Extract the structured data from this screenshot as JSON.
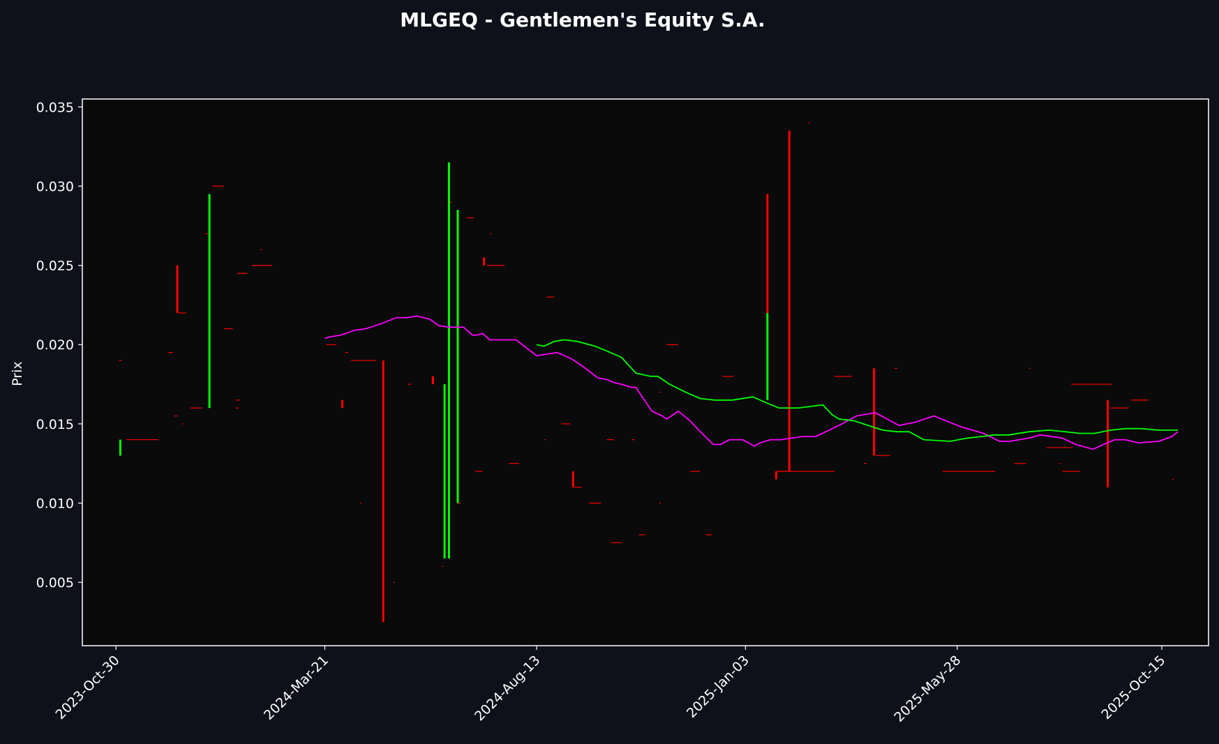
{
  "chart_data": {
    "type": "candlestick",
    "title": "MLGEQ - Gentlemen's Equity S.A.",
    "ylabel": "Prix",
    "xlabel": "",
    "x_ticks": [
      "2023-Oct-30",
      "2024-Mar-21",
      "2024-Aug-13",
      "2025-Jan-03",
      "2025-May-28",
      "2025-Oct-15"
    ],
    "y_ticks": [
      "0.005",
      "0.010",
      "0.015",
      "0.020",
      "0.025",
      "0.030",
      "0.035"
    ],
    "ylim": [
      0.001,
      0.0355
    ],
    "xlim": [
      "2023-Oct-07",
      "2025-Nov-16"
    ],
    "grid": false,
    "colors": {
      "background": "#0e111a",
      "plot_area": "#0a0a0a",
      "axes": "#ffffff",
      "up": "#00ff00",
      "down": "#ff0000",
      "ma_short": "#ff00ff",
      "ma_long": "#00ff00"
    },
    "candles": [
      {
        "date": "2023-Nov-02",
        "open": 0.013,
        "high": 0.014,
        "low": 0.013,
        "close": 0.014
      },
      {
        "date": "2023-Dec-11",
        "open": 0.025,
        "high": 0.025,
        "low": 0.022,
        "close": 0.022
      },
      {
        "date": "2024-Jan-02",
        "open": 0.016,
        "high": 0.0295,
        "low": 0.016,
        "close": 0.0295
      },
      {
        "date": "2024-Apr-02",
        "open": 0.0165,
        "high": 0.0165,
        "low": 0.016,
        "close": 0.016
      },
      {
        "date": "2024-Apr-30",
        "open": 0.019,
        "high": 0.019,
        "low": 0.0025,
        "close": 0.0025
      },
      {
        "date": "2024-Jun-03",
        "open": 0.018,
        "high": 0.018,
        "low": 0.0175,
        "close": 0.0175
      },
      {
        "date": "2024-Jun-11",
        "open": 0.0065,
        "high": 0.0175,
        "low": 0.0065,
        "close": 0.0175
      },
      {
        "date": "2024-Jun-14",
        "open": 0.0065,
        "high": 0.0315,
        "low": 0.0065,
        "close": 0.0315
      },
      {
        "date": "2024-Jun-20",
        "open": 0.01,
        "high": 0.0285,
        "low": 0.01,
        "close": 0.0285
      },
      {
        "date": "2024-Jul-08",
        "open": 0.0255,
        "high": 0.0255,
        "low": 0.025,
        "close": 0.025
      },
      {
        "date": "2024-Sep-07",
        "open": 0.012,
        "high": 0.012,
        "low": 0.011,
        "close": 0.011
      },
      {
        "date": "2025-Jan-18",
        "open": 0.0165,
        "high": 0.022,
        "low": 0.0165,
        "close": 0.022
      },
      {
        "date": "2025-Jan-18",
        "open": 0.0295,
        "high": 0.0295,
        "low": 0.022,
        "close": 0.022
      },
      {
        "date": "2025-Jan-24",
        "open": 0.012,
        "high": 0.012,
        "low": 0.0115,
        "close": 0.0115
      },
      {
        "date": "2025-Feb-02",
        "open": 0.0335,
        "high": 0.0335,
        "low": 0.012,
        "close": 0.012
      },
      {
        "date": "2025-Apr-01",
        "open": 0.0185,
        "high": 0.0185,
        "low": 0.013,
        "close": 0.013
      },
      {
        "date": "2025-Sep-08",
        "open": 0.0165,
        "high": 0.0165,
        "low": 0.011,
        "close": 0.011
      }
    ],
    "flat_bars": [
      {
        "date": "2023-Nov-01",
        "value": 0.019,
        "days": 2
      },
      {
        "date": "2023-Nov-06",
        "value": 0.014,
        "days": 22
      },
      {
        "date": "2023-Dec-05",
        "value": 0.0195,
        "days": 3
      },
      {
        "date": "2023-Dec-09",
        "value": 0.0155,
        "days": 2
      },
      {
        "date": "2023-Dec-12",
        "value": 0.022,
        "days": 5
      },
      {
        "date": "2023-Dec-14",
        "value": 0.015,
        "days": 1
      },
      {
        "date": "2023-Dec-20",
        "value": 0.016,
        "days": 8
      },
      {
        "date": "2023-Dec-30",
        "value": 0.027,
        "days": 2
      },
      {
        "date": "2024-Jan-04",
        "value": 0.03,
        "days": 8
      },
      {
        "date": "2024-Jan-12",
        "value": 0.021,
        "days": 6
      },
      {
        "date": "2024-Jan-20",
        "value": 0.016,
        "days": 2
      },
      {
        "date": "2024-Jan-21",
        "value": 0.0245,
        "days": 7
      },
      {
        "date": "2024-Jan-31",
        "value": 0.025,
        "days": 14
      },
      {
        "date": "2024-Feb-06",
        "value": 0.026,
        "days": 1
      },
      {
        "date": "2024-Mar-22",
        "value": 0.02,
        "days": 7
      },
      {
        "date": "2024-Apr-04",
        "value": 0.0195,
        "days": 2
      },
      {
        "date": "2024-Apr-08",
        "value": 0.019,
        "days": 17
      },
      {
        "date": "2024-Apr-14",
        "value": 0.01,
        "days": 1
      },
      {
        "date": "2024-May-07",
        "value": 0.005,
        "days": 1
      },
      {
        "date": "2024-May-17",
        "value": 0.0175,
        "days": 2
      },
      {
        "date": "2024-Jun-09",
        "value": 0.006,
        "days": 1
      },
      {
        "date": "2024-Jun-13",
        "value": 0.029,
        "days": 3
      },
      {
        "date": "2024-Jun-20",
        "value": 0.01,
        "days": 2
      },
      {
        "date": "2024-Jun-26",
        "value": 0.028,
        "days": 5
      },
      {
        "date": "2024-Jul-02",
        "value": 0.012,
        "days": 5
      },
      {
        "date": "2024-Jul-10",
        "value": 0.025,
        "days": 12
      },
      {
        "date": "2024-Jul-12",
        "value": 0.027,
        "days": 1
      },
      {
        "date": "2024-Jul-25",
        "value": 0.0125,
        "days": 7
      },
      {
        "date": "2024-Aug-18",
        "value": 0.014,
        "days": 1
      },
      {
        "date": "2024-Aug-20",
        "value": 0.023,
        "days": 5
      },
      {
        "date": "2024-Aug-30",
        "value": 0.015,
        "days": 6
      },
      {
        "date": "2024-Sep-08",
        "value": 0.011,
        "days": 5
      },
      {
        "date": "2024-Sep-18",
        "value": 0.01,
        "days": 8
      },
      {
        "date": "2024-Sep-30",
        "value": 0.014,
        "days": 5
      },
      {
        "date": "2024-Oct-03",
        "value": 0.0075,
        "days": 7
      },
      {
        "date": "2024-Oct-17",
        "value": 0.014,
        "days": 2
      },
      {
        "date": "2024-Oct-22",
        "value": 0.008,
        "days": 4
      },
      {
        "date": "2024-Nov-05",
        "value": 0.01,
        "days": 1
      },
      {
        "date": "2024-Nov-05",
        "value": 0.017,
        "days": 1
      },
      {
        "date": "2024-Nov-10",
        "value": 0.02,
        "days": 8
      },
      {
        "date": "2024-Nov-26",
        "value": 0.012,
        "days": 7
      },
      {
        "date": "2024-Dec-07",
        "value": 0.008,
        "days": 4
      },
      {
        "date": "2024-Dec-18",
        "value": 0.018,
        "days": 8
      },
      {
        "date": "2024-Jan-20",
        "value": 0.0165,
        "days": 3
      },
      {
        "date": "2025-Jan-24",
        "value": 0.012,
        "days": 40
      },
      {
        "date": "2025-Feb-15",
        "value": 0.034,
        "days": 1
      },
      {
        "date": "2025-Mar-05",
        "value": 0.018,
        "days": 12
      },
      {
        "date": "2025-Mar-25",
        "value": 0.0125,
        "days": 2
      },
      {
        "date": "2025-Apr-02",
        "value": 0.013,
        "days": 10
      },
      {
        "date": "2025-Apr-15",
        "value": 0.0185,
        "days": 2
      },
      {
        "date": "2025-May-18",
        "value": 0.012,
        "days": 36
      },
      {
        "date": "2025-Jul-06",
        "value": 0.0125,
        "days": 8
      },
      {
        "date": "2025-Jul-16",
        "value": 0.0185,
        "days": 1
      },
      {
        "date": "2025-Jul-28",
        "value": 0.0135,
        "days": 18
      },
      {
        "date": "2025-Aug-06",
        "value": 0.0125,
        "days": 1
      },
      {
        "date": "2025-Aug-08",
        "value": 0.012,
        "days": 12
      },
      {
        "date": "2025-Aug-14",
        "value": 0.0175,
        "days": 28
      },
      {
        "date": "2025-Sep-10",
        "value": 0.016,
        "days": 12
      },
      {
        "date": "2025-Sep-24",
        "value": 0.0165,
        "days": 12
      },
      {
        "date": "2025-Oct-22",
        "value": 0.0115,
        "days": 1
      }
    ],
    "series": [
      {
        "color": "#ff00ff",
        "x": [
          "2024-Mar-21",
          "2024-Mar-25",
          "2024-Apr-01",
          "2024-Apr-10",
          "2024-Apr-18",
          "2024-Apr-28",
          "2024-May-09",
          "2024-May-16",
          "2024-May-23",
          "2024-Jun-01",
          "2024-Jun-07",
          "2024-Jun-14",
          "2024-Jun-20",
          "2024-Jun-24",
          "2024-Jun-30",
          "2024-Jul-03",
          "2024-Jul-07",
          "2024-Jul-12",
          "2024-Jul-20",
          "2024-Jul-30",
          "2024-Aug-13",
          "2024-Aug-20",
          "2024-Aug-27",
          "2024-Sep-01",
          "2024-Sep-06",
          "2024-Sep-14",
          "2024-Sep-24",
          "2024-Sep-30",
          "2024-Oct-05",
          "2024-Oct-10",
          "2024-Oct-17",
          "2024-Oct-20",
          "2024-Oct-25",
          "2024-Oct-31",
          "2024-Nov-07",
          "2024-Nov-10",
          "2024-Nov-18",
          "2024-Nov-26",
          "2024-Dec-02",
          "2024-Dec-12",
          "2024-Dec-17",
          "2024-Dec-23",
          "2025-Jan-01",
          "2025-Jan-09",
          "2025-Jan-13",
          "2025-Jan-20",
          "2025-Jan-27",
          "2025-Feb-11",
          "2025-Feb-20",
          "2025-Feb-27",
          "2025-Mar-10",
          "2025-Mar-20",
          "2025-Apr-02",
          "2025-Apr-10",
          "2025-Apr-18",
          "2025-Apr-29",
          "2025-May-12",
          "2025-May-20",
          "2025-May-31",
          "2025-Jun-15",
          "2025-Jun-26",
          "2025-Jul-03",
          "2025-Jul-16",
          "2025-Jul-24",
          "2025-Aug-08",
          "2025-Aug-17",
          "2025-Aug-29",
          "2025-Sep-05",
          "2025-Sep-13",
          "2025-Sep-20",
          "2025-Sep-29",
          "2025-Oct-13",
          "2025-Oct-22",
          "2025-Oct-26"
        ],
        "values": [
          0.0204,
          0.0205,
          0.0206,
          0.0209,
          0.021,
          0.0213,
          0.0217,
          0.0217,
          0.0218,
          0.0216,
          0.0212,
          0.0211,
          0.0211,
          0.0211,
          0.0206,
          0.0206,
          0.0207,
          0.0203,
          0.0203,
          0.0203,
          0.0193,
          0.0194,
          0.0195,
          0.0193,
          0.0191,
          0.0186,
          0.0179,
          0.0178,
          0.0176,
          0.0175,
          0.0173,
          0.0173,
          0.0166,
          0.0158,
          0.0155,
          0.0153,
          0.0158,
          0.0152,
          0.0146,
          0.0137,
          0.0137,
          0.014,
          0.014,
          0.0136,
          0.0138,
          0.014,
          0.014,
          0.0142,
          0.0142,
          0.0145,
          0.015,
          0.0155,
          0.0157,
          0.0153,
          0.0149,
          0.0151,
          0.0155,
          0.0152,
          0.0148,
          0.0144,
          0.0139,
          0.0139,
          0.0141,
          0.0143,
          0.0141,
          0.0137,
          0.0134,
          0.0137,
          0.014,
          0.014,
          0.0138,
          0.0139,
          0.0142,
          0.0145
        ]
      },
      {
        "color": "#00ff00",
        "x": [
          "2024-Aug-13",
          "2024-Aug-18",
          "2024-Aug-25",
          "2024-Sep-01",
          "2024-Sep-10",
          "2024-Sep-22",
          "2024-Sep-30",
          "2024-Oct-10",
          "2024-Oct-20",
          "2024-Oct-30",
          "2024-Nov-04",
          "2024-Nov-12",
          "2024-Nov-23",
          "2024-Dec-03",
          "2024-Dec-13",
          "2024-Dec-25",
          "2025-Jan-08",
          "2025-Jan-18",
          "2025-Jan-26",
          "2025-Feb-08",
          "2025-Feb-25",
          "2025-Mar-03",
          "2025-Mar-08",
          "2025-Mar-18",
          "2025-Mar-28",
          "2025-Apr-07",
          "2025-Apr-17",
          "2025-Apr-25",
          "2025-May-05",
          "2025-May-23",
          "2025-Jun-04",
          "2025-Jun-14",
          "2025-Jun-22",
          "2025-Jul-02",
          "2025-Jul-16",
          "2025-Jul-30",
          "2025-Aug-10",
          "2025-Aug-20",
          "2025-Aug-30",
          "2025-Sep-10",
          "2025-Sep-20",
          "2025-Oct-01",
          "2025-Oct-13",
          "2025-Oct-26"
        ],
        "values": [
          0.02,
          0.0199,
          0.0202,
          0.0203,
          0.0202,
          0.0199,
          0.0196,
          0.0192,
          0.0182,
          0.018,
          0.018,
          0.0175,
          0.017,
          0.0166,
          0.0165,
          0.0165,
          0.0167,
          0.0163,
          0.016,
          0.016,
          0.0162,
          0.0156,
          0.0153,
          0.0152,
          0.0149,
          0.0146,
          0.0145,
          0.0145,
          0.014,
          0.0139,
          0.0141,
          0.0142,
          0.0143,
          0.0143,
          0.0145,
          0.0146,
          0.0145,
          0.0144,
          0.0144,
          0.0146,
          0.0147,
          0.0147,
          0.0146,
          0.0146
        ]
      }
    ]
  }
}
